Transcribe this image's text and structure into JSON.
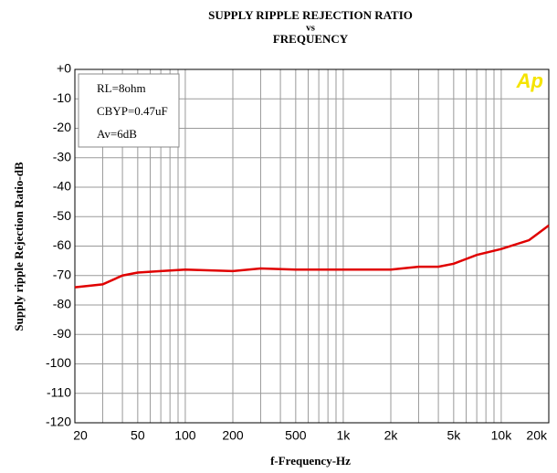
{
  "chart_data": {
    "type": "line",
    "title": [
      "SUPPLY RIPPLE REJECTION RATIO",
      "vs",
      "FREQUENCY"
    ],
    "xlabel": "f-Frequency-Hz",
    "ylabel": "Supply ripple Rejection Ratio-dB",
    "annotations": [
      "RL=8ohm",
      "CBYP=0.47uF",
      "Av=6dB"
    ],
    "logo": "Ap",
    "x_log": true,
    "grid": true,
    "xlim": [
      20,
      20000
    ],
    "ylim": [
      -120,
      0
    ],
    "xticks": [
      20,
      50,
      100,
      200,
      500,
      {
        "value": 1000,
        "label": "1k"
      },
      {
        "value": 2000,
        "label": "2k"
      },
      {
        "value": 5000,
        "label": "5k"
      },
      {
        "value": 10000,
        "label": "10k"
      },
      {
        "value": 20000,
        "label": "20k"
      }
    ],
    "x_minor_grid": [
      30,
      40,
      60,
      70,
      80,
      90,
      300,
      400,
      600,
      700,
      800,
      900,
      3000,
      4000,
      6000,
      7000,
      8000,
      9000
    ],
    "yticks": [
      {
        "value": 0,
        "label": "+0"
      },
      -10,
      -20,
      -30,
      -40,
      -50,
      -60,
      -70,
      -80,
      -90,
      -100,
      -110,
      -120
    ],
    "x": [
      20,
      30,
      40,
      50,
      70,
      100,
      200,
      300,
      500,
      1000,
      2000,
      3000,
      4000,
      5000,
      7000,
      10000,
      15000,
      20000
    ],
    "series": [
      {
        "color": "#e00000",
        "values": [
          -74,
          -73,
          -70,
          -69,
          -68.5,
          -68,
          -68.5,
          -67.6,
          -68,
          -68,
          -68,
          -67,
          -67,
          -66,
          -63,
          -61,
          -58,
          -53
        ]
      }
    ]
  }
}
